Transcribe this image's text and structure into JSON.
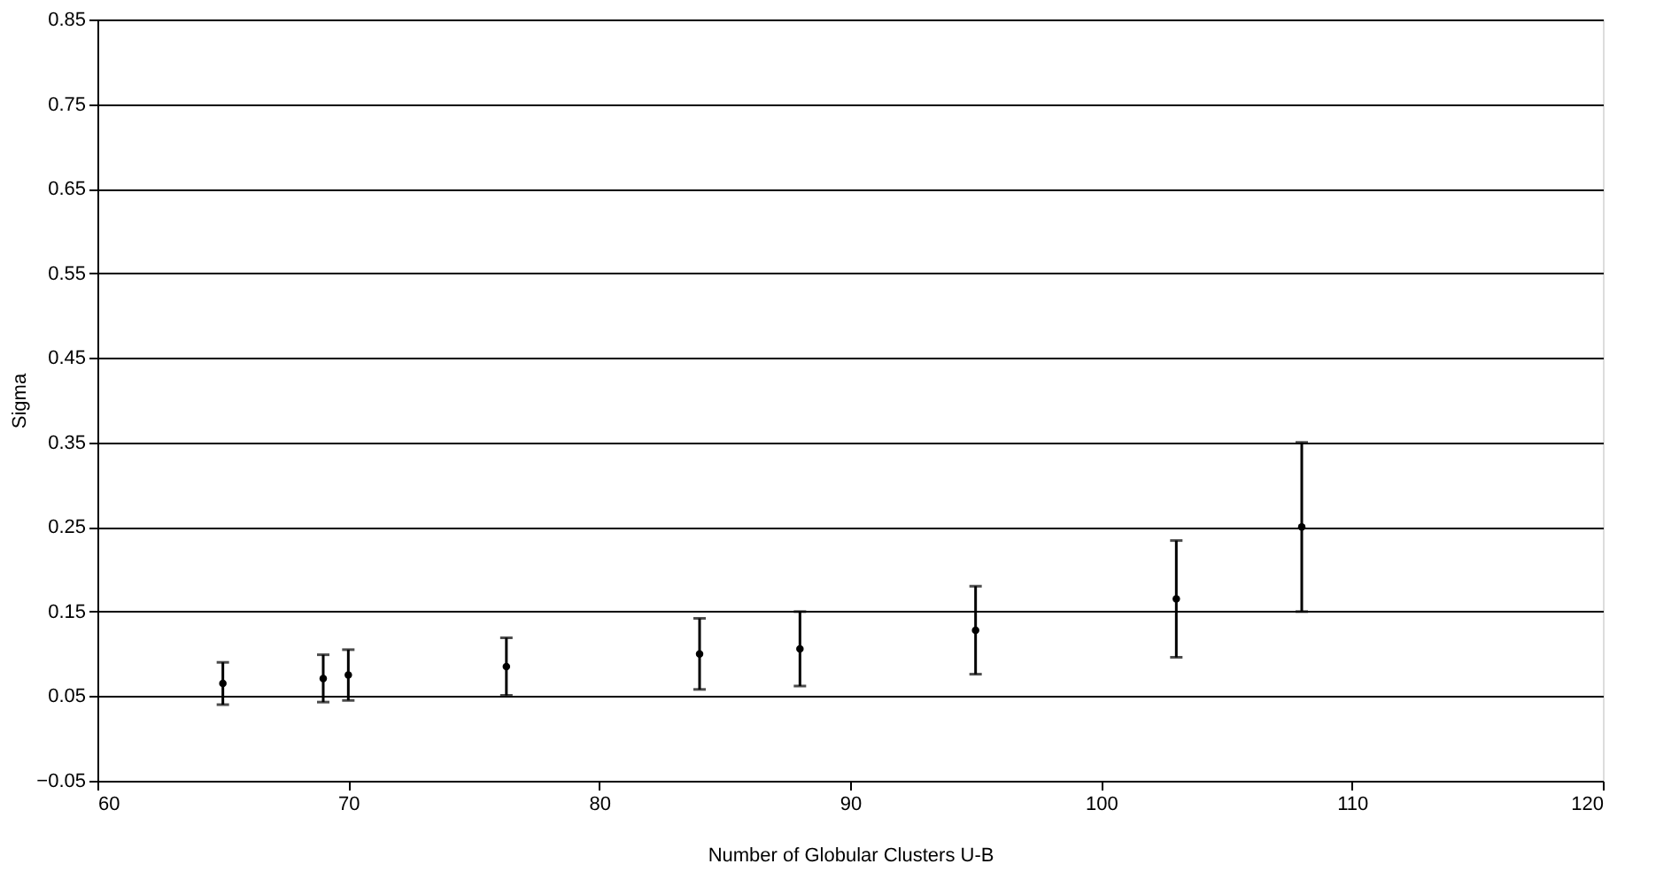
{
  "chart_data": {
    "type": "scatter",
    "xlabel": "Number of Globular Clusters U-B",
    "ylabel": "Sigma",
    "x": [
      65,
      69,
      70,
      76.3,
      84,
      88,
      95,
      103,
      108
    ],
    "series": [
      {
        "color": "#000000",
        "values": [
          0.065,
          0.071,
          0.075,
          0.085,
          0.1,
          0.106,
          0.128,
          0.165,
          0.25
        ],
        "errors": [
          0.025,
          0.028,
          0.03,
          0.034,
          0.042,
          0.044,
          0.052,
          0.069,
          0.1
        ]
      }
    ],
    "xlim": [
      60,
      120
    ],
    "xticks": [
      60,
      70,
      80,
      90,
      100,
      110,
      120
    ],
    "ylim": [
      -0.05,
      0.85
    ],
    "yticks": [
      -0.05,
      0.05,
      0.15,
      0.25,
      0.35,
      0.45,
      0.55,
      0.65,
      0.75,
      0.85
    ],
    "grid": "y",
    "marker": "circle"
  }
}
